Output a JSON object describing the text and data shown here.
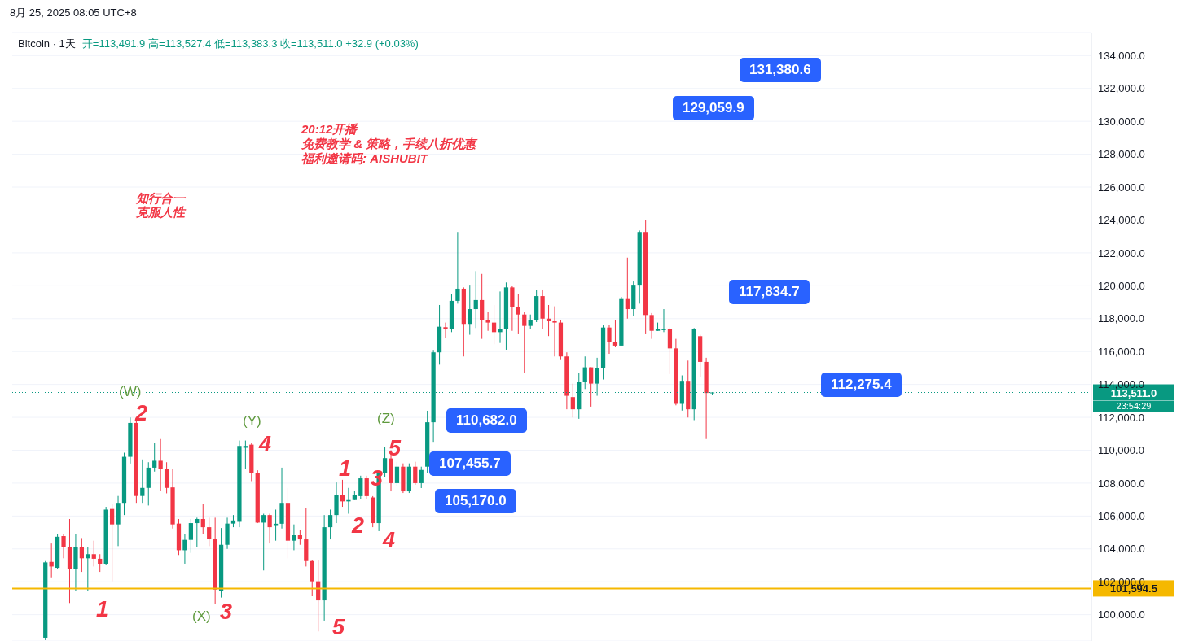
{
  "chart_data": {
    "type": "candlestick",
    "title": "Bitcoin · 1天",
    "subtitle": "开=113,491.9 高=113,527.4 低=113,383.3 收=113,511.0 +32.9 (+0.03%)",
    "categories": [
      null,
      null,
      null,
      null,
      null,
      null,
      null,
      null,
      null,
      null,
      null,
      null,
      null,
      null,
      null,
      null,
      null,
      null,
      null,
      null,
      null,
      null,
      null,
      null,
      null,
      null,
      null,
      null,
      null,
      null,
      null,
      null,
      null,
      null,
      null,
      null,
      null,
      null,
      null,
      null,
      null,
      null,
      null,
      null,
      null,
      null,
      null,
      null,
      null,
      null,
      null,
      null,
      null,
      null,
      null,
      null,
      null,
      null,
      null,
      null,
      null,
      null,
      null,
      null,
      null,
      null,
      null,
      null,
      null,
      null,
      null,
      null,
      null,
      null,
      null,
      null,
      null,
      null,
      null,
      null,
      null,
      null,
      null,
      null,
      null,
      null,
      null,
      null,
      null,
      null,
      null,
      null,
      null,
      null,
      null,
      null,
      null,
      null,
      null,
      null,
      null,
      null,
      null,
      null,
      null,
      null,
      null,
      null,
      null,
      null,
      null,
      null,
      null,
      null,
      null,
      null,
      null,
      null,
      null,
      null,
      null,
      null,
      null,
      null,
      null,
      null,
      null,
      null,
      null,
      null,
      null,
      null,
      null,
      null,
      null,
      null,
      null,
      null,
      null,
      null,
      null,
      null,
      null,
      null,
      null,
      null,
      null,
      null,
      null,
      null,
      null,
      null,
      null,
      null,
      null,
      null,
      null,
      null,
      null,
      null,
      null,
      null,
      null,
      null,
      null,
      null,
      null,
      null,
      null,
      null,
      null,
      null,
      null,
      null,
      null,
      null,
      null,
      null
    ],
    "ohlc": [
      null,
      null,
      null,
      null,
      null,
      [
        98600,
        103260,
        98450,
        103180
      ],
      [
        103210,
        104330,
        102270,
        102930
      ],
      [
        102850,
        104910,
        102770,
        104740
      ],
      [
        104780,
        104910,
        103430,
        104090
      ],
      [
        104090,
        105820,
        100710,
        102770
      ],
      [
        102770,
        104910,
        101450,
        104090
      ],
      [
        104090,
        104660,
        102600,
        103430
      ],
      [
        103430,
        104120,
        101450,
        103680
      ],
      [
        103680,
        104500,
        102930,
        103400
      ],
      [
        103400,
        103680,
        102600,
        103100
      ],
      [
        103100,
        106560,
        103020,
        106390
      ],
      [
        106430,
        106720,
        102030,
        105490
      ],
      [
        105490,
        107220,
        104170,
        106800
      ],
      [
        106800,
        109850,
        106060,
        109600
      ],
      [
        109600,
        111990,
        109190,
        111660
      ],
      [
        111660,
        111830,
        106800,
        107220
      ],
      [
        107220,
        109440,
        106800,
        107710
      ],
      [
        107710,
        109270,
        106640,
        108940
      ],
      [
        108940,
        110430,
        108700,
        109360
      ],
      [
        109360,
        110680,
        107540,
        108860
      ],
      [
        108860,
        109270,
        107380,
        107710
      ],
      [
        107740,
        108860,
        105240,
        105490
      ],
      [
        105540,
        105820,
        103630,
        103920
      ],
      [
        103920,
        104910,
        103100,
        104550
      ],
      [
        104550,
        105820,
        103760,
        105570
      ],
      [
        105570,
        105900,
        104090,
        105820
      ],
      [
        105820,
        106750,
        104910,
        105320
      ],
      [
        105320,
        105900,
        104170,
        104630
      ],
      [
        104630,
        105900,
        100630,
        101530
      ],
      [
        101450,
        105270,
        101040,
        104250
      ],
      [
        104250,
        105900,
        104000,
        105540
      ],
      [
        105540,
        106060,
        105320,
        105730
      ],
      [
        105650,
        110590,
        105320,
        110260
      ],
      [
        110150,
        110590,
        108860,
        110260
      ],
      [
        110340,
        110430,
        108120,
        108620
      ],
      [
        108620,
        108780,
        105570,
        105600
      ],
      [
        105600,
        106140,
        102690,
        106060
      ],
      [
        106060,
        106140,
        104330,
        105320
      ],
      [
        105400,
        106390,
        104500,
        105530
      ],
      [
        105530,
        108940,
        105240,
        106800
      ],
      [
        106800,
        107710,
        103430,
        104500
      ],
      [
        104500,
        105490,
        103920,
        104830
      ],
      [
        104830,
        105160,
        104250,
        104580
      ],
      [
        104580,
        106470,
        102930,
        103260
      ],
      [
        103260,
        103340,
        101120,
        102030
      ],
      [
        102030,
        103340,
        98980,
        100870
      ],
      [
        100870,
        106060,
        99640,
        105320
      ],
      [
        105320,
        106390,
        104580,
        106060
      ],
      [
        106060,
        108040,
        105570,
        107300
      ],
      [
        107300,
        108200,
        106560,
        106890
      ],
      [
        106890,
        107710,
        106140,
        106970
      ],
      [
        106970,
        107540,
        106970,
        107300
      ],
      [
        107210,
        108450,
        107050,
        108290
      ],
      [
        108290,
        108450,
        107050,
        107210
      ],
      [
        107130,
        107210,
        105320,
        105570
      ],
      [
        105570,
        108700,
        105080,
        108620
      ],
      [
        108620,
        110180,
        108370,
        109520
      ],
      [
        109500,
        110000,
        107500,
        108000
      ],
      [
        108000,
        109300,
        107800,
        109000
      ],
      [
        109000,
        109200,
        107400,
        107500
      ],
      [
        107500,
        109200,
        107400,
        109000
      ],
      [
        109000,
        109300,
        107900,
        108000
      ],
      [
        108000,
        109000,
        107700,
        108800
      ],
      [
        109000,
        112400,
        108600,
        111700
      ],
      [
        111700,
        116100,
        110510,
        115950
      ],
      [
        115950,
        118830,
        115200,
        117510
      ],
      [
        117480,
        117760,
        116850,
        117350
      ],
      [
        117350,
        119490,
        117180,
        119080
      ],
      [
        119080,
        123270,
        118910,
        119820
      ],
      [
        119820,
        119900,
        115700,
        117680
      ],
      [
        117680,
        120060,
        117020,
        118580
      ],
      [
        118580,
        120890,
        117430,
        119130
      ],
      [
        119130,
        120720,
        116770,
        117890
      ],
      [
        117890,
        118420,
        117260,
        117760
      ],
      [
        117760,
        118830,
        116440,
        117180
      ],
      [
        117180,
        119650,
        116520,
        117350
      ],
      [
        117350,
        120200,
        116110,
        119900
      ],
      [
        119900,
        120010,
        117260,
        118710
      ],
      [
        118710,
        119490,
        117100,
        118250
      ],
      [
        118250,
        118420,
        114710,
        117560
      ],
      [
        117560,
        118250,
        117350,
        117890
      ],
      [
        117890,
        119730,
        117790,
        119370
      ],
      [
        119370,
        119770,
        117350,
        118000
      ],
      [
        118000,
        118830,
        116940,
        117840
      ],
      [
        117840,
        118750,
        115700,
        117760
      ],
      [
        117760,
        117920,
        115530,
        115700
      ],
      [
        115700,
        115950,
        112490,
        113310
      ],
      [
        113230,
        114050,
        111990,
        112490
      ],
      [
        112490,
        114710,
        111910,
        114170
      ],
      [
        114170,
        115700,
        113720,
        115040
      ],
      [
        115040,
        115040,
        112650,
        114050
      ],
      [
        114050,
        115620,
        113310,
        114990
      ],
      [
        114990,
        117590,
        114300,
        117460
      ],
      [
        117460,
        117630,
        115860,
        116570
      ],
      [
        116570,
        117890,
        116280,
        116360
      ],
      [
        116360,
        119320,
        116360,
        119240
      ],
      [
        119240,
        121710,
        118000,
        118580
      ],
      [
        118580,
        120260,
        118170,
        120060
      ],
      [
        120060,
        123360,
        118910,
        123270
      ],
      [
        123270,
        124020,
        117100,
        118220
      ],
      [
        118220,
        118340,
        116770,
        117260
      ],
      [
        117260,
        117760,
        117260,
        117380
      ],
      [
        117300,
        118580,
        117180,
        117350
      ],
      [
        117350,
        117460,
        114630,
        116190
      ],
      [
        116190,
        116770,
        112730,
        112820
      ],
      [
        112820,
        114550,
        112410,
        114220
      ],
      [
        114220,
        115450,
        111990,
        112490
      ],
      [
        112490,
        117430,
        111830,
        117350
      ],
      [
        116935,
        117020,
        114460,
        115370
      ],
      [
        115370,
        115620,
        110680,
        113480
      ],
      [
        113491.9,
        113527.4,
        113383.3,
        113511.0
      ],
      null,
      null,
      null,
      null,
      null,
      null,
      null,
      null,
      null,
      null,
      null,
      null,
      null,
      null,
      null,
      null,
      null,
      null,
      null,
      null,
      null,
      null,
      null,
      null,
      null,
      null,
      null,
      null,
      null,
      null,
      null,
      null,
      null,
      null,
      null,
      null,
      null,
      null,
      null,
      null,
      null,
      null,
      null,
      null,
      null,
      null,
      null,
      null,
      null,
      null,
      null,
      null,
      null,
      null,
      null,
      null,
      null,
      null,
      null,
      null,
      null,
      null
    ],
    "colors": [
      null,
      null,
      null,
      null,
      null,
      "#089981",
      "#f23645",
      "#089981",
      "#f23645",
      "#f23645",
      "#089981",
      "#f23645",
      "#089981",
      "#f23645",
      "#f23645",
      "#089981",
      "#f23645",
      "#089981",
      "#089981",
      "#089981",
      "#f23645",
      "#089981",
      "#089981",
      "#089981",
      "#f23645",
      "#f23645",
      "#f23645",
      "#f23645",
      "#089981",
      "#089981",
      "#089981",
      "#f23645",
      "#f23645",
      "#f23645",
      "#089981",
      "#089981",
      "#089981",
      "#089981",
      "#089981",
      "#f23645",
      "#f23645",
      "#089981",
      "#f23645",
      "#089981",
      "#089981",
      "#f23645",
      "#089981",
      "#f23645",
      "#f23645",
      "#f23645",
      "#f23645",
      "#089981",
      "#089981",
      "#089981",
      "#f23645",
      "#089981",
      "#089981",
      "#089981",
      "#f23645",
      "#f23645",
      "#089981",
      "#089981",
      "#f23645",
      "#089981",
      "#f23645",
      "#089981",
      "#f23645",
      "#089981",
      "#089981",
      "#089981",
      "#089981",
      "#f23645",
      "#089981",
      "#089981",
      "#f23645",
      "#089981",
      "#089981",
      "#f23645",
      "#f23645",
      "#f23645",
      "#089981",
      "#089981",
      "#f23645",
      "#f23645",
      "#f23645",
      "#089981",
      "#089981",
      "#f23645",
      "#f23645",
      "#f23645",
      "#f23645",
      "#f23645",
      "#f23645",
      "#089981",
      "#089981",
      "#f23645",
      "#089981",
      "#089981",
      "#f23645",
      "#f23645",
      "#089981",
      "#f23645",
      "#089981",
      "#089981",
      "#f23645",
      "#f23645",
      "#089981",
      "#089981",
      "#f23645",
      "#f23645",
      "#089981",
      "#f23645",
      "#089981",
      "#f23645",
      "#f23645",
      "#089981",
      null,
      null,
      null,
      null,
      null,
      null,
      null,
      null,
      null,
      null,
      null,
      null,
      null,
      null,
      null,
      null,
      null,
      null,
      null,
      null,
      null,
      null,
      null,
      null,
      null,
      null,
      null,
      null,
      null,
      null,
      null,
      null,
      null,
      null,
      null,
      null,
      null,
      null,
      null,
      null,
      null,
      null,
      null,
      null,
      null,
      null,
      null,
      null,
      null,
      null,
      null,
      null,
      null,
      null,
      null,
      null,
      null,
      null,
      null,
      null,
      null,
      null
    ],
    "ylim": [
      98400,
      135400
    ],
    "yticks": [
      {
        "value": 100000,
        "label": "100,000.0"
      },
      {
        "value": 102000,
        "label": "102,000.0"
      },
      {
        "value": 104000,
        "label": "104,000.0"
      },
      {
        "value": 106000,
        "label": "106,000.0"
      },
      {
        "value": 108000,
        "label": "108,000.0"
      },
      {
        "value": 110000,
        "label": "110,000.0"
      },
      {
        "value": 112000,
        "label": "112,000.0"
      },
      {
        "value": 114000,
        "label": "114,000.0"
      },
      {
        "value": 116000,
        "label": "116,000.0"
      },
      {
        "value": 118000,
        "label": "118,000.0"
      },
      {
        "value": 120000,
        "label": "120,000.0"
      },
      {
        "value": 122000,
        "label": "122,000.0"
      },
      {
        "value": 124000,
        "label": "124,000.0"
      },
      {
        "value": 126000,
        "label": "126,000.0"
      },
      {
        "value": 128000,
        "label": "128,000.0"
      },
      {
        "value": 130000,
        "label": "130,000.0"
      },
      {
        "value": 132000,
        "label": "132,000.0"
      },
      {
        "value": 134000,
        "label": "134,000.0"
      }
    ],
    "grid": "y",
    "ref_lines": [
      {
        "axis": "y",
        "value": 101594.5,
        "label": "101,594.5",
        "color": "#f5b800",
        "line_style": "solid"
      },
      {
        "axis": "y",
        "value": 113511.0,
        "label": "113,511.0",
        "color": "#089981",
        "line_style": "dotted"
      }
    ],
    "annotations": [
      "20:12开播",
      "免费教学 & 策略，手续八折优惠",
      "福利邀请码: AISHUBIT",
      "知行合一",
      "克服人性",
      "131,380.6",
      "129,059.9",
      "117,834.7",
      "112,275.4",
      "110,682.0",
      "107,455.7",
      "105,170.0",
      "(W)",
      "(Y)",
      "(X)",
      "(Z)",
      "2",
      "4",
      "1",
      "3",
      "5",
      "1",
      "2",
      "3",
      "4",
      "5",
      "23:54:29",
      "8月 25, 2025 08:05 UTC+8"
    ]
  }
}
